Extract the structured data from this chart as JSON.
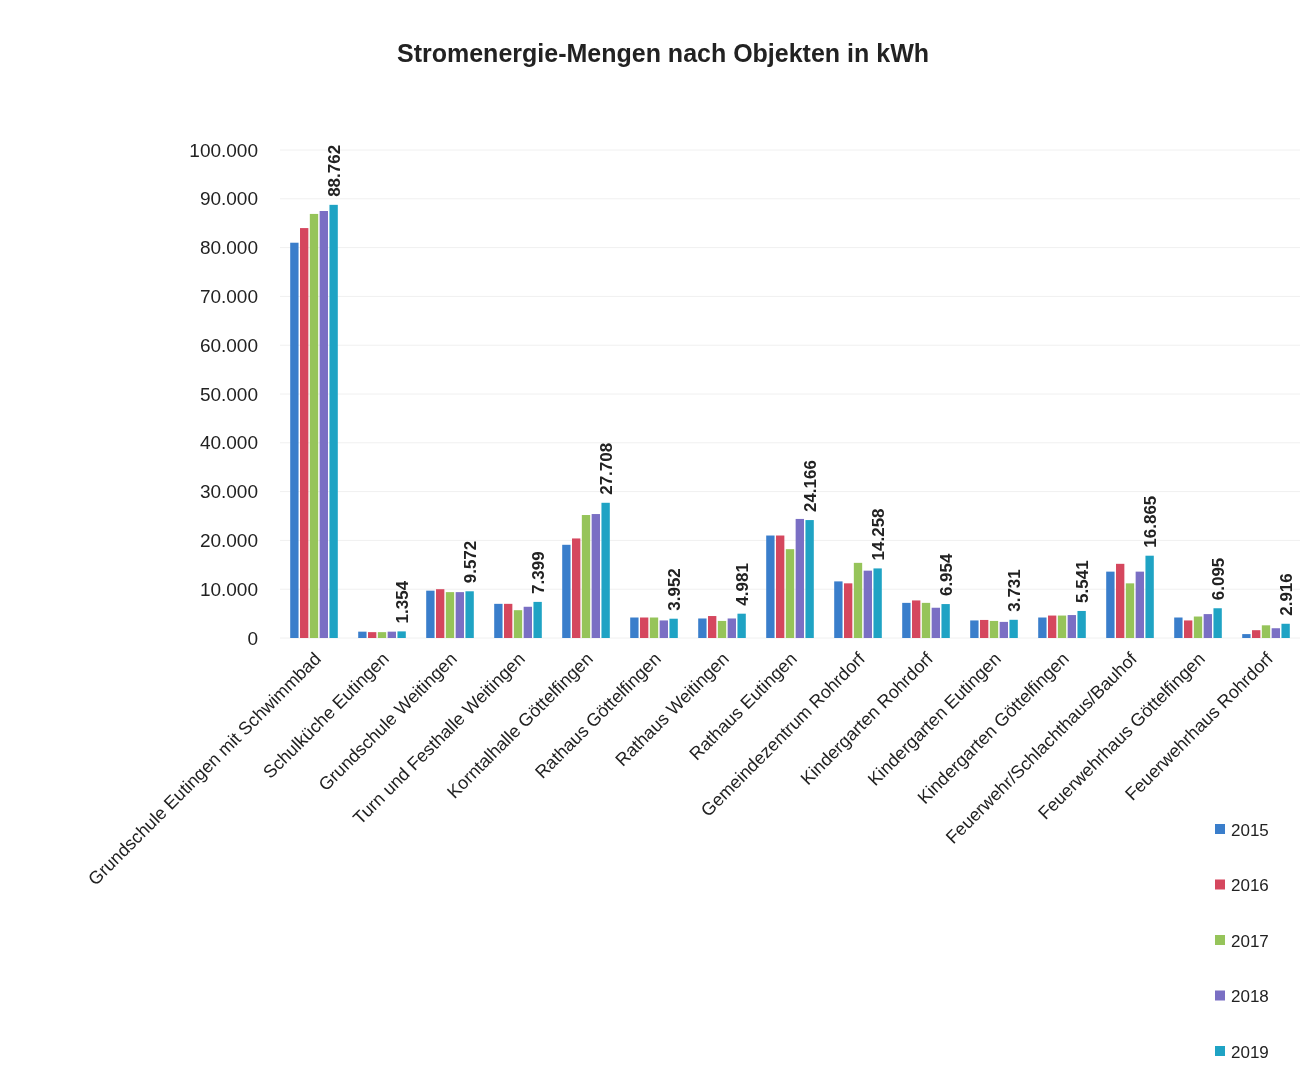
{
  "chart_data": {
    "type": "bar",
    "title": "Stromenergie-Mengen nach Objekten in kWh",
    "categories": [
      "Grundschule Eutingen mit Schwimmbad",
      "Schulküche Eutingen",
      "Grundschule Weitingen",
      "Turn und Festhalle Weitingen",
      "Korntalhalle Göttelfingen",
      "Rathaus Göttelfingen",
      "Rathaus Weitingen",
      "Rathaus Eutingen",
      "Gemeindezentrum Rohrdorf",
      "Kindergarten Rohrdorf",
      "Kindergarten Eutingen",
      "Kindergarten Göttelfingen",
      "Feuerwehr/Schlachthaus/Bauhof",
      "Feuerwehrhaus Göttelfingen",
      "Feuerwehrhaus Rohrdorf"
    ],
    "series": [
      {
        "name": "2015",
        "color": "#3a7ecb",
        "values": [
          81000,
          1300,
          9700,
          7000,
          19100,
          4200,
          4000,
          21000,
          11600,
          7200,
          3600,
          4200,
          13600,
          4200,
          800
        ]
      },
      {
        "name": "2016",
        "color": "#d5475e",
        "values": [
          84000,
          1200,
          10000,
          7000,
          20400,
          4200,
          4500,
          21000,
          11200,
          7700,
          3700,
          4600,
          15200,
          3600,
          1600
        ]
      },
      {
        "name": "2017",
        "color": "#96c45a",
        "values": [
          86900,
          1200,
          9400,
          5700,
          25200,
          4200,
          3500,
          18200,
          15400,
          7200,
          3500,
          4600,
          11200,
          4400,
          2600
        ]
      },
      {
        "name": "2018",
        "color": "#7a6fc4",
        "values": [
          87500,
          1300,
          9400,
          6400,
          25400,
          3600,
          4000,
          24400,
          13800,
          6200,
          3300,
          4700,
          13600,
          4900,
          2000
        ]
      },
      {
        "name": "2019",
        "color": "#1fa3c4",
        "values": [
          88762,
          1354,
          9572,
          7399,
          27708,
          3952,
          4981,
          24166,
          14258,
          6954,
          3731,
          5541,
          16865,
          6095,
          2916
        ],
        "value_labels": [
          "88.762",
          "1.354",
          "9.572",
          "7.399",
          "27.708",
          "3.952",
          "4.981",
          "24.166",
          "14.258",
          "6.954",
          "3.731",
          "5.541",
          "16.865",
          "6.095",
          "2.916"
        ]
      }
    ],
    "ylim": [
      0,
      100000
    ],
    "yticks": [
      {
        "value": 0,
        "label": "0"
      },
      {
        "value": 10000,
        "label": "10.000"
      },
      {
        "value": 20000,
        "label": "20.000"
      },
      {
        "value": 30000,
        "label": "30.000"
      },
      {
        "value": 40000,
        "label": "40.000"
      },
      {
        "value": 50000,
        "label": "50.000"
      },
      {
        "value": 60000,
        "label": "60.000"
      },
      {
        "value": 70000,
        "label": "70.000"
      },
      {
        "value": 80000,
        "label": "80.000"
      },
      {
        "value": 90000,
        "label": "90.000"
      },
      {
        "value": 100000,
        "label": "100.000"
      }
    ],
    "grid": "y",
    "legend": "bottom right"
  }
}
